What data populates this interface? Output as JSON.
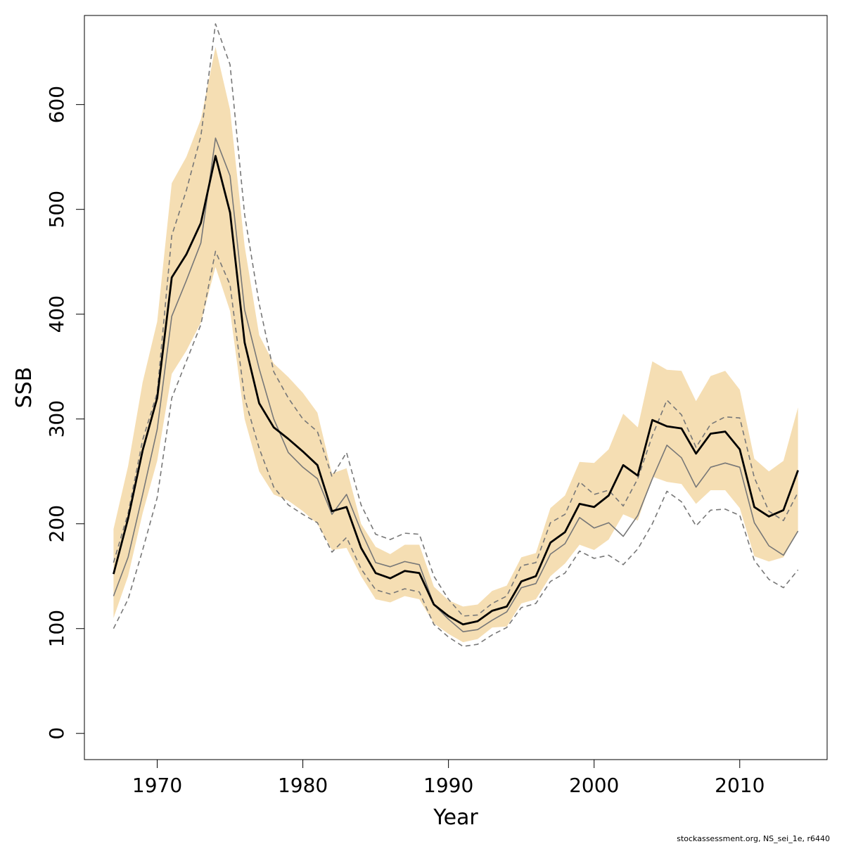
{
  "chart_data": {
    "type": "line",
    "xlabel": "Year",
    "ylabel": "SSB",
    "xlim": [
      1965,
      2016
    ],
    "ylim": [
      -25,
      685
    ],
    "x_ticks": [
      1970,
      1980,
      1990,
      2000,
      2010
    ],
    "y_ticks": [
      0,
      100,
      200,
      300,
      400,
      500,
      600
    ],
    "grid": false,
    "footer_text": "stockassessment.org, NS_sei_1e, r6440",
    "colors": {
      "band": "#f5deb3",
      "main": "#000000",
      "alt": "#777777",
      "dashed": "#777777"
    },
    "x": [
      1967,
      1968,
      1969,
      1970,
      1971,
      1972,
      1973,
      1974,
      1975,
      1976,
      1977,
      1978,
      1979,
      1980,
      1981,
      1982,
      1983,
      1984,
      1985,
      1986,
      1987,
      1988,
      1989,
      1990,
      1991,
      1992,
      1993,
      1994,
      1995,
      1996,
      1997,
      1998,
      1999,
      2000,
      2001,
      2002,
      2003,
      2004,
      2005,
      2006,
      2007,
      2008,
      2009,
      2010,
      2011,
      2012,
      2013,
      2014
    ],
    "band": {
      "upper": [
        195,
        255,
        335,
        393,
        525,
        550,
        586,
        655,
        595,
        465,
        380,
        353,
        340,
        325,
        306,
        248,
        253,
        200,
        178,
        171,
        180,
        180,
        140,
        127,
        121,
        123,
        136,
        141,
        168,
        172,
        215,
        227,
        259,
        258,
        271,
        305,
        292,
        355,
        347,
        346,
        317,
        341,
        346,
        328,
        262,
        250,
        260,
        311
      ],
      "lower": [
        110,
        150,
        210,
        260,
        343,
        365,
        392,
        445,
        403,
        300,
        250,
        228,
        222,
        212,
        200,
        175,
        177,
        150,
        128,
        125,
        131,
        128,
        105,
        95,
        87,
        90,
        101,
        102,
        124,
        128,
        150,
        162,
        180,
        175,
        185,
        209,
        203,
        245,
        240,
        238,
        219,
        232,
        232,
        215,
        169,
        164,
        168,
        193
      ]
    },
    "series": [
      {
        "values": [
          152,
          205,
          270,
          320,
          435,
          457,
          487,
          551,
          497,
          373,
          315,
          292,
          281,
          269,
          256,
          212,
          216,
          177,
          153,
          148,
          155,
          153,
          123,
          112,
          104,
          107,
          117,
          121,
          145,
          150,
          182,
          192,
          219,
          216,
          227,
          256,
          246,
          299,
          293,
          291,
          267,
          286,
          288,
          271,
          216,
          207,
          213,
          251
        ]
      },
      {
        "values": [
          131,
          168,
          228,
          290,
          398,
          432,
          468,
          568,
          532,
          404,
          348,
          300,
          268,
          254,
          243,
          209,
          228,
          193,
          163,
          159,
          164,
          161,
          123,
          109,
          97,
          99,
          108,
          116,
          139,
          143,
          171,
          181,
          206,
          196,
          201,
          188,
          208,
          243,
          275,
          263,
          235,
          254,
          258,
          254,
          201,
          179,
          170,
          193
        ]
      },
      {
        "values": [
          163,
          210,
          280,
          325,
          475,
          518,
          570,
          677,
          638,
          495,
          410,
          345,
          320,
          300,
          288,
          245,
          268,
          218,
          190,
          185,
          191,
          190,
          150,
          128,
          112,
          113,
          124,
          131,
          160,
          163,
          201,
          209,
          240,
          228,
          232,
          217,
          243,
          284,
          318,
          304,
          273,
          295,
          302,
          301,
          244,
          212,
          203,
          230
        ]
      },
      {
        "values": [
          100,
          128,
          175,
          225,
          320,
          355,
          390,
          460,
          428,
          320,
          272,
          235,
          218,
          209,
          201,
          173,
          187,
          157,
          137,
          133,
          138,
          135,
          104,
          92,
          83,
          85,
          94,
          101,
          120,
          124,
          145,
          153,
          174,
          167,
          170,
          161,
          176,
          200,
          231,
          221,
          198,
          213,
          214,
          208,
          165,
          147,
          139,
          156
        ]
      }
    ]
  }
}
